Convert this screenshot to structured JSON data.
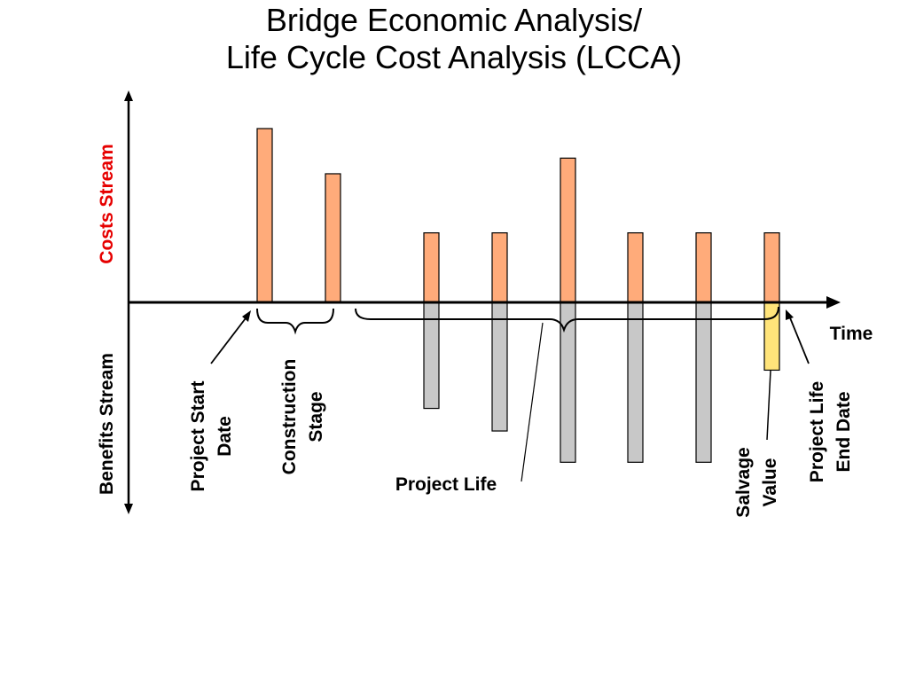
{
  "title": {
    "line1": "Bridge Economic Analysis/",
    "line2": "Life Cycle Cost Analysis (LCCA)"
  },
  "axes": {
    "costs_label": "Costs Stream",
    "benefits_label": "Benefits Stream",
    "time_label": "Time"
  },
  "labels": {
    "project_start": [
      "Project Start",
      "Date"
    ],
    "construction": [
      "Construction",
      "Stage"
    ],
    "project_life": "Project Life",
    "salvage": [
      "Salvage",
      "Value"
    ],
    "project_end": [
      "Project Life",
      "End  Date"
    ]
  },
  "colors": {
    "cost_bar": "#ffab7a",
    "benefit_bar": "#c8c8c8",
    "salvage_bar": "#ffe47a",
    "costs_label": "#e60000"
  },
  "chart_data": {
    "type": "bar",
    "cost_bars": [
      100,
      74,
      0,
      0,
      0,
      0,
      0,
      0
    ],
    "cost_bars_life": [
      40,
      40,
      83,
      40,
      40,
      40
    ],
    "benefit_bars": [
      0,
      0,
      61,
      74,
      92,
      92,
      92
    ],
    "salvage_value": 39
  }
}
